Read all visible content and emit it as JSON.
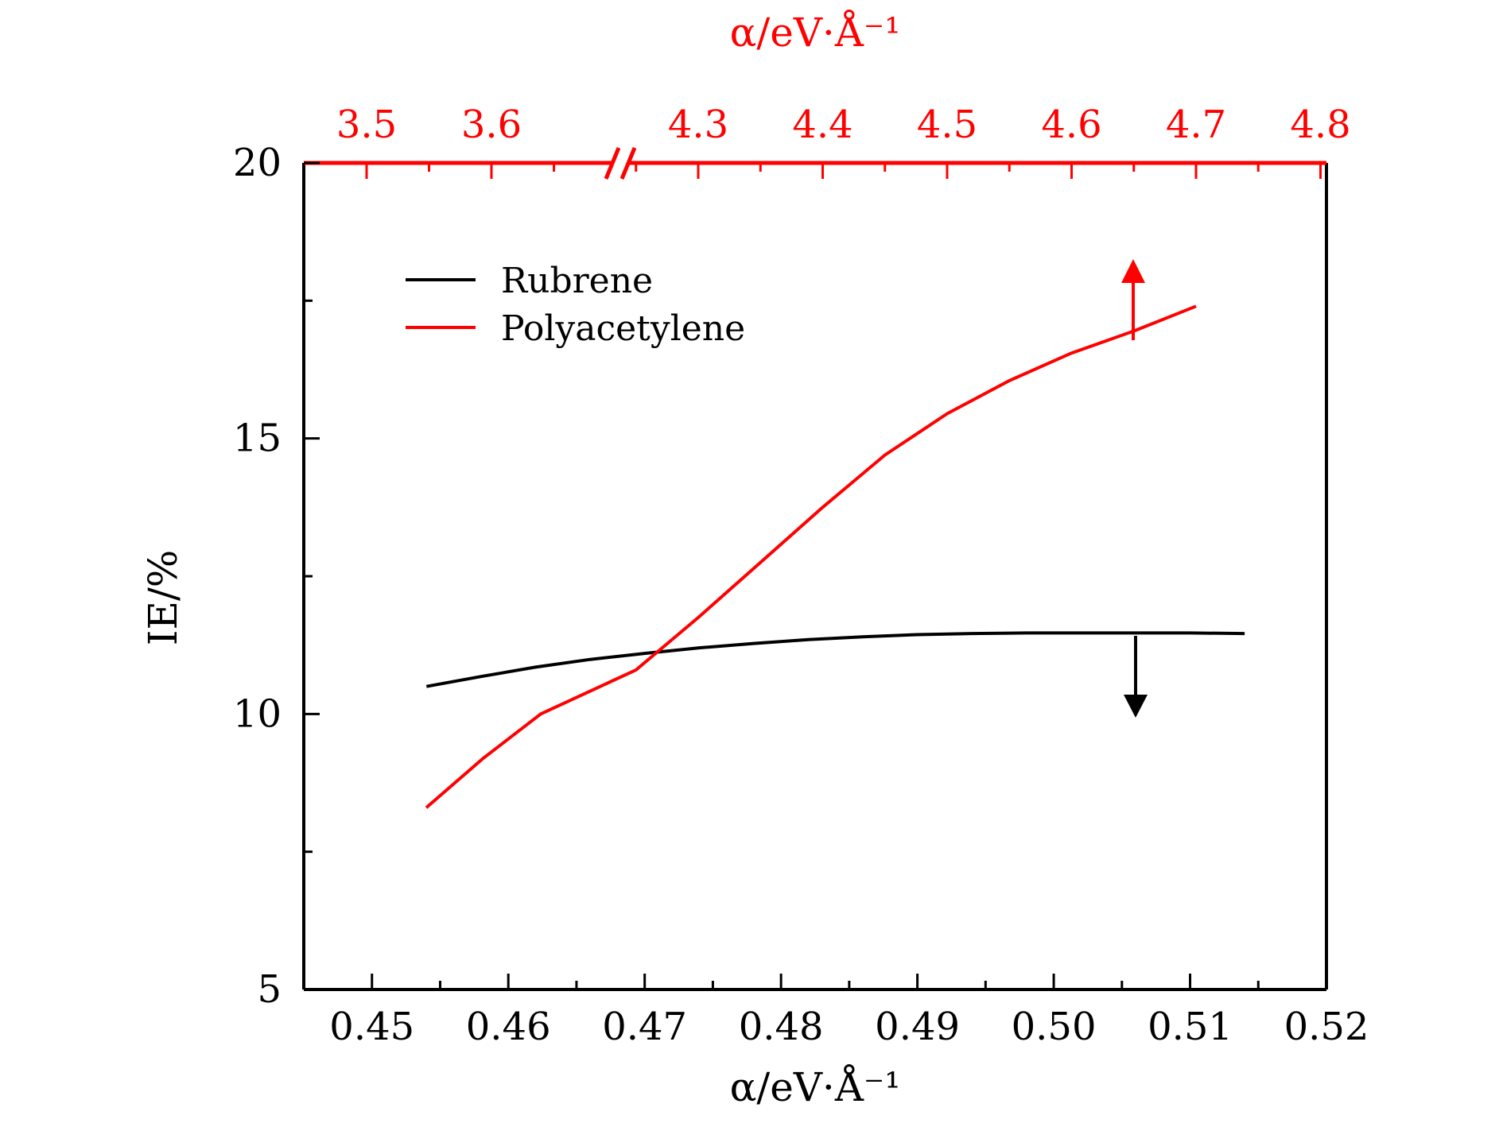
{
  "colors": {
    "rubrene": "#000000",
    "polyacetylene": "#ff0000",
    "bottom_axis": "#000000",
    "top_axis": "#ff0000"
  },
  "chart_data": {
    "type": "line",
    "ylabel": "IE/%",
    "xlabel": "α/eV·Å⁻¹",
    "x2label": "α/eV·Å⁻¹",
    "xlim": [
      0.445,
      0.52
    ],
    "ylim": [
      5,
      20
    ],
    "xticks": [
      "0.45",
      "0.46",
      "0.47",
      "0.48",
      "0.49",
      "0.50",
      "0.51",
      "0.52"
    ],
    "yticks": [
      "5",
      "10",
      "15",
      "20"
    ],
    "x2ticks": [
      "3.5",
      "3.6",
      "4.3",
      "4.4",
      "4.5",
      "4.6",
      "4.7",
      "4.8"
    ],
    "x2_axis_break": "between 3.6 and 4.3",
    "legend_position": "upper-left",
    "series": [
      {
        "name": "Rubrene",
        "axis": "bottom",
        "x": [
          0.454,
          0.458,
          0.462,
          0.466,
          0.47,
          0.474,
          0.478,
          0.482,
          0.486,
          0.49,
          0.494,
          0.498,
          0.502,
          0.506,
          0.51,
          0.514
        ],
        "y": [
          10.5,
          10.68,
          10.85,
          10.99,
          11.1,
          11.2,
          11.28,
          11.35,
          11.4,
          11.44,
          11.46,
          11.47,
          11.47,
          11.47,
          11.47,
          11.46
        ]
      },
      {
        "name": "Polyacetylene",
        "axis": "top",
        "x": [
          3.55,
          3.6,
          3.65,
          4.25,
          4.3,
          4.35,
          4.4,
          4.45,
          4.5,
          4.55,
          4.6,
          4.65,
          4.7
        ],
        "y": [
          8.3,
          9.2,
          10.0,
          10.8,
          11.75,
          12.75,
          13.75,
          14.7,
          15.45,
          16.05,
          16.55,
          16.95,
          17.4
        ]
      }
    ]
  }
}
